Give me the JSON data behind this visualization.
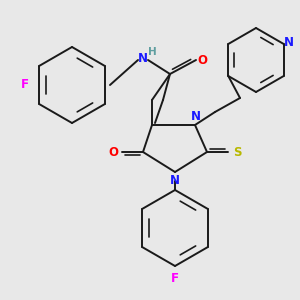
{
  "bg_color": "#e8e8e8",
  "figsize": [
    3.0,
    3.0
  ],
  "dpi": 100,
  "colors": {
    "N": "#1a1aff",
    "O": "#ff0000",
    "S": "#b8b800",
    "F": "#ff00ff",
    "H": "#5f9ea0",
    "bond": "#1a1a1a"
  },
  "lw": 1.4,
  "lw_inner": 1.2,
  "font_size": 8.5,
  "font_size_small": 7.5
}
